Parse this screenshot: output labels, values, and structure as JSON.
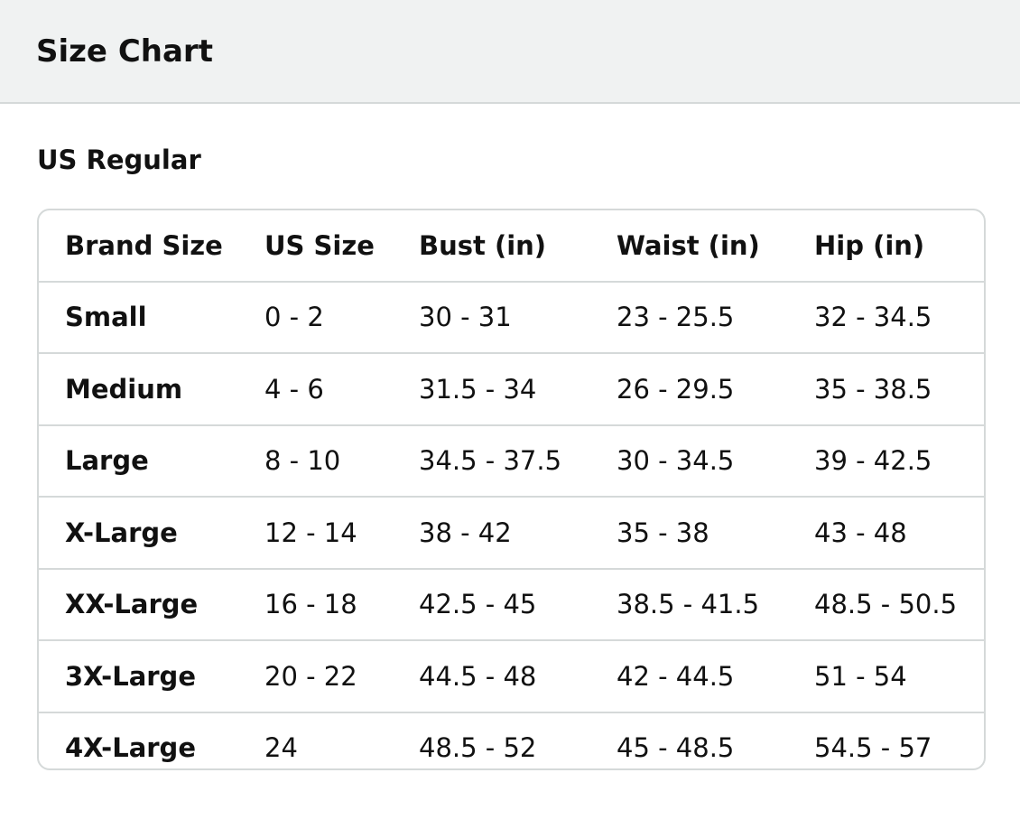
{
  "header": {
    "title": "Size Chart"
  },
  "section": {
    "title": "US Regular"
  },
  "table": {
    "columns": [
      "Brand Size",
      "US Size",
      "Bust (in)",
      "Waist (in)",
      "Hip (in)"
    ],
    "rows": [
      [
        "Small",
        "0 - 2",
        "30 - 31",
        "23 - 25.5",
        "32 - 34.5"
      ],
      [
        "Medium",
        "4 - 6",
        "31.5 - 34",
        "26 - 29.5",
        "35 - 38.5"
      ],
      [
        "Large",
        "8 - 10",
        "34.5 - 37.5",
        "30 - 34.5",
        "39 - 42.5"
      ],
      [
        "X-Large",
        "12 - 14",
        "38 - 42",
        "35 - 38",
        "43 - 48"
      ],
      [
        "XX-Large",
        "16 - 18",
        "42.5 - 45",
        "38.5 - 41.5",
        "48.5 - 50.5"
      ],
      [
        "3X-Large",
        "20 - 22",
        "44.5 - 48",
        "42 - 44.5",
        "51 - 54"
      ],
      [
        "4X-Large",
        "24",
        "48.5 - 52",
        "45 - 48.5",
        "54.5 - 57"
      ]
    ]
  }
}
